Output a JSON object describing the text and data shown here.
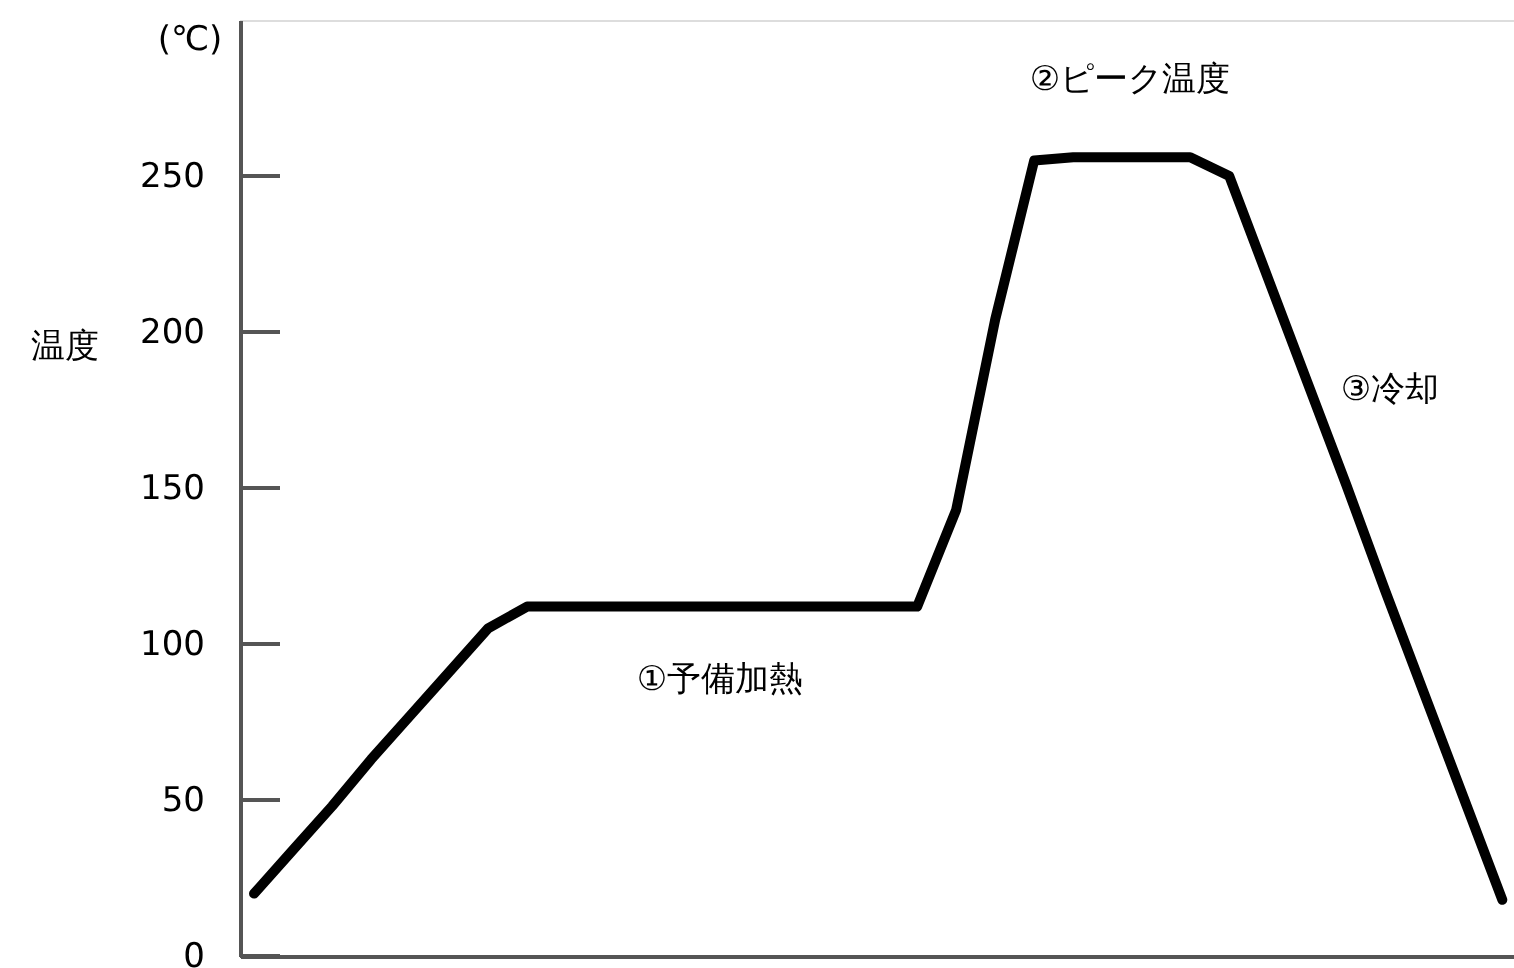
{
  "chart_data": {
    "type": "line",
    "ylabel": "温度",
    "categories": [
      null,
      null,
      null,
      null,
      null,
      null,
      null,
      null,
      null,
      null,
      null,
      null,
      null,
      null,
      null,
      null,
      null,
      null,
      null,
      null,
      null,
      null,
      null,
      null,
      null,
      null,
      null,
      null,
      null,
      null,
      null,
      null,
      null
    ],
    "series": [
      {
        "color": "#000000",
        "values": [
          20,
          34,
          48,
          63,
          77,
          91,
          105,
          112,
          112,
          112,
          112,
          112,
          112,
          112,
          112,
          112,
          112,
          112,
          143,
          204,
          255,
          256,
          256,
          256,
          256,
          250,
          217,
          184,
          151,
          117,
          84,
          51,
          18
        ]
      }
    ],
    "ylim": [
      0,
      300
    ],
    "yticks": [
      0,
      50,
      100,
      150,
      200,
      250
    ],
    "grid": false,
    "marker": "none",
    "line_style": "solid",
    "tick_labels": "y",
    "annotations": [
      "(℃)",
      "①予備加熱",
      "②ピーク温度",
      "③冷却"
    ]
  }
}
